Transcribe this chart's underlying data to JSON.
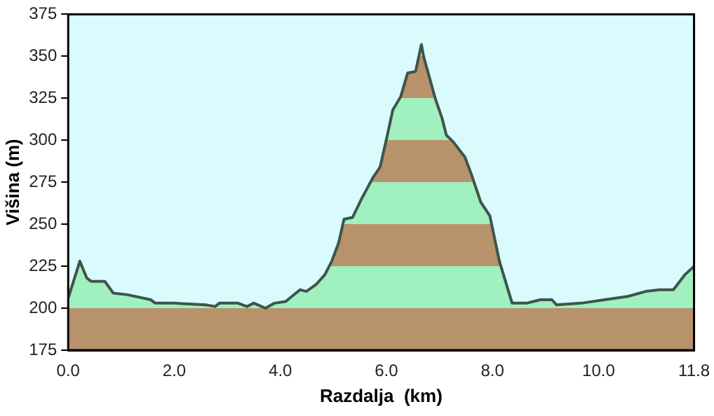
{
  "chart_data": {
    "type": "area",
    "xlabel": "Razdalja  (km)",
    "ylabel": "Višina (m)",
    "xlim": [
      0,
      11.8
    ],
    "xticks": [
      {
        "value": 0,
        "label": "0.0"
      },
      {
        "value": 2,
        "label": "2.0"
      },
      {
        "value": 4,
        "label": "4.0"
      },
      {
        "value": 6,
        "label": "6.0"
      },
      {
        "value": 8,
        "label": "8.0"
      },
      {
        "value": 10,
        "label": "10.0"
      },
      {
        "value": 11.8,
        "label": "11.8"
      }
    ],
    "ylim": [
      175,
      375
    ],
    "yticks": [
      175,
      200,
      225,
      250,
      275,
      300,
      325,
      350,
      375
    ],
    "x": [
      0,
      0.22,
      0.35,
      0.43,
      0.69,
      0.85,
      1.12,
      1.56,
      1.64,
      1.99,
      2.59,
      2.77,
      2.85,
      3.2,
      3.37,
      3.5,
      3.72,
      3.89,
      4.1,
      4.37,
      4.49,
      4.67,
      4.84,
      4.97,
      5.1,
      5.2,
      5.36,
      5.53,
      5.75,
      5.88,
      6.01,
      6.12,
      6.27,
      6.4,
      6.55,
      6.66,
      6.7,
      6.92,
      7.05,
      7.13,
      7.26,
      7.48,
      7.61,
      7.78,
      7.95,
      8.13,
      8.37,
      8.64,
      8.9,
      9.12,
      9.21,
      9.68,
      10.11,
      10.55,
      10.89,
      11.15,
      11.41,
      11.63,
      11.8
    ],
    "series": [
      {
        "color": "#3f544c",
        "values": [
          206,
          228,
          218,
          216,
          216,
          209,
          208,
          205,
          203,
          203,
          202,
          201,
          203,
          203,
          201,
          203,
          200,
          203,
          204,
          211,
          210,
          214,
          220,
          228,
          239,
          253,
          254,
          265,
          278,
          284,
          302,
          318,
          326,
          340,
          341,
          357,
          350,
          325,
          313,
          303,
          299,
          290,
          279,
          263,
          255,
          228,
          203,
          203,
          205,
          205,
          202,
          203,
          205,
          207,
          210,
          211,
          211,
          220,
          225
        ]
      }
    ],
    "grid": false,
    "legend": false,
    "marker": "none",
    "line_style": "solid"
  }
}
